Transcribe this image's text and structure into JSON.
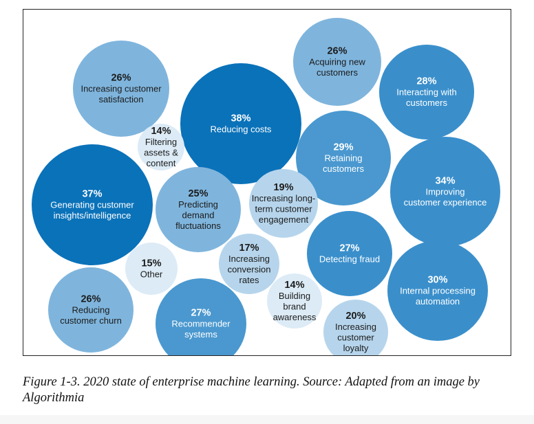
{
  "chart_data": {
    "type": "bubble",
    "title": "",
    "items": [
      {
        "value": "26%",
        "label": [
          "Increasing customer",
          "satisfaction"
        ]
      },
      {
        "value": "38%",
        "label": [
          "Reducing costs"
        ]
      },
      {
        "value": "26%",
        "label": [
          "Acquiring new",
          "customers"
        ]
      },
      {
        "value": "28%",
        "label": [
          "Interacting with",
          "customers"
        ]
      },
      {
        "value": "14%",
        "label": [
          "Filtering",
          "assets &",
          "content"
        ]
      },
      {
        "value": "29%",
        "label": [
          "Retaining",
          "customers"
        ]
      },
      {
        "value": "37%",
        "label": [
          "Generating customer",
          "insights/intelligence"
        ]
      },
      {
        "value": "25%",
        "label": [
          "Predicting",
          "demand",
          "fluctuations"
        ]
      },
      {
        "value": "19%",
        "label": [
          "Increasing long-",
          "term customer",
          "engagement"
        ]
      },
      {
        "value": "34%",
        "label": [
          "Improving",
          "customer experience"
        ]
      },
      {
        "value": "27%",
        "label": [
          "Detecting fraud"
        ]
      },
      {
        "value": "17%",
        "label": [
          "Increasing",
          "conversion",
          "rates"
        ]
      },
      {
        "value": "15%",
        "label": [
          "Other"
        ]
      },
      {
        "value": "14%",
        "label": [
          "Building",
          "brand",
          "awareness"
        ]
      },
      {
        "value": "30%",
        "label": [
          "Internal processing",
          "automation"
        ]
      },
      {
        "value": "26%",
        "label": [
          "Reducing",
          "customer churn"
        ]
      },
      {
        "value": "27%",
        "label": [
          "Recommender",
          "systems"
        ]
      },
      {
        "value": "20%",
        "label": [
          "Increasing",
          "customer",
          "loyalty"
        ]
      }
    ]
  },
  "caption": "Figure 1-3. 2020 state of enterprise machine learning. Source: Adapted from an image by Algorithmia"
}
